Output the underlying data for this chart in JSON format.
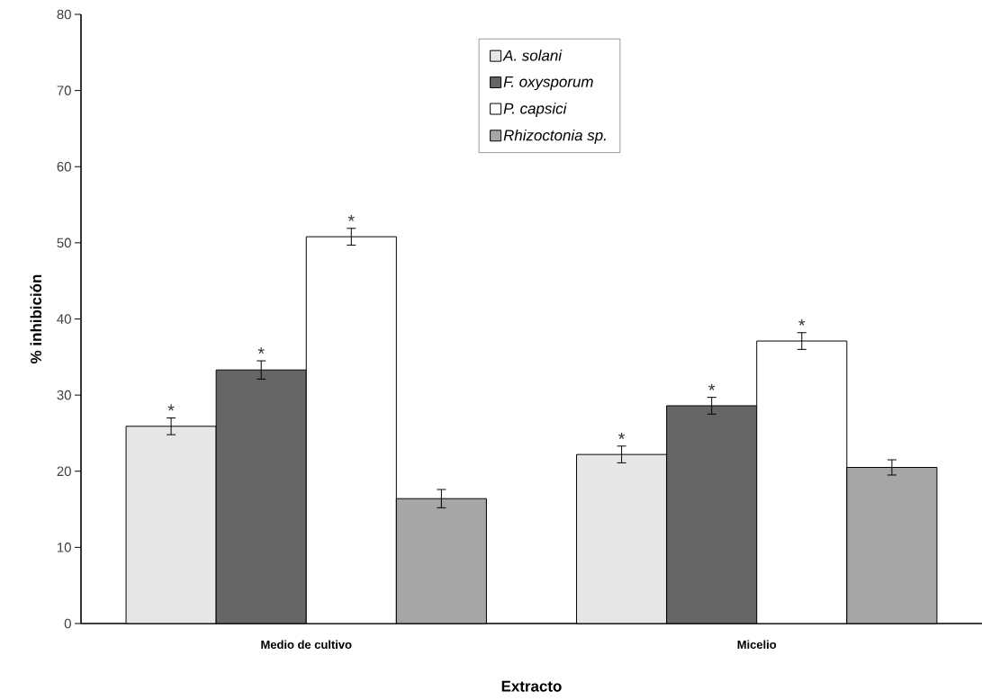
{
  "chart_data": {
    "type": "bar",
    "xlabel": "Extracto",
    "ylabel": "% inhibición",
    "categories": [
      "Medio de cultivo",
      "Micelio"
    ],
    "series": [
      {
        "name": "A. solani",
        "color": "#e6e6e6",
        "values": [
          25.9,
          22.2
        ],
        "errors": [
          1.1,
          1.1
        ],
        "value_labels": [
          "*",
          "*"
        ]
      },
      {
        "name": "F. oxysporum",
        "color": "#666666",
        "values": [
          33.3,
          28.6
        ],
        "errors": [
          1.2,
          1.1
        ],
        "value_labels": [
          "*",
          "*"
        ]
      },
      {
        "name": "P. capsici",
        "color": "#ffffff",
        "values": [
          50.8,
          37.1
        ],
        "errors": [
          1.1,
          1.1
        ],
        "value_labels": [
          "*",
          "*"
        ]
      },
      {
        "name": "Rhizoctonia sp.",
        "color": "#a6a6a6",
        "values": [
          16.4,
          20.5
        ],
        "errors": [
          1.2,
          1.0
        ],
        "value_labels": [
          null,
          null
        ]
      }
    ],
    "ylim": [
      0,
      80
    ],
    "yticks": [
      0,
      10,
      20,
      30,
      40,
      50,
      60,
      70,
      80
    ],
    "grid": false,
    "legend": "top"
  }
}
